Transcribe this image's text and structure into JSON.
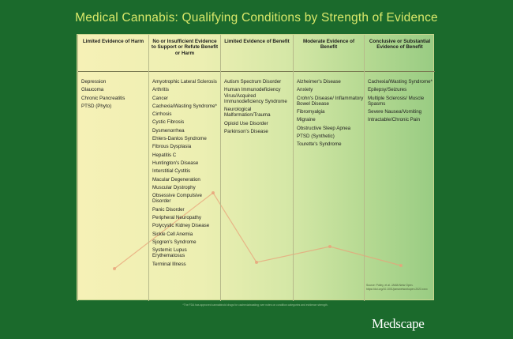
{
  "title": "Medical Cannabis: Qualifying Conditions by Strength of Evidence",
  "columns": [
    {
      "header": "Limited Evidence of Harm",
      "items": [
        "Depression",
        "Glaucoma",
        "Chronic Pancreatitis",
        "PTSD (Phyto)"
      ]
    },
    {
      "header": "No or Insufficient Evidence to Support or Refute Benefit or Harm",
      "items": [
        "Amyotrophic Lateral Sclerosis",
        "Arthritis",
        "Cancer",
        "Cachexia/Wasting Syndrome*",
        "Cirrhosis",
        "Cystic Fibrosis",
        "Dysmenorrhea",
        "Ehlers-Danlos Syndrome",
        "Fibrous Dysplasia",
        "Hepatitis C",
        "Huntington's Disease",
        "Interstitial Cystitis",
        "Macular Degeneration",
        "Muscular Dystrophy",
        "Obsessive Compulsive Disorder",
        "Panic Disorder",
        "Peripheral Neuropathy",
        "Polycystic Kidney Disease",
        "Sickle Cell Anemia",
        "Sjogren's Syndrome",
        "Systemic Lupus Erythematosus",
        "Terminal Illness"
      ]
    },
    {
      "header": "Limited Evidence of Benefit",
      "items": [
        "Autism Spectrum Disorder",
        "Human Immunodeficiency Virus/Acquired Immunodeficiency Syndrome",
        "Neurological Malformation/Trauma",
        "Opioid Use Disorder",
        "Parkinson's Disease"
      ]
    },
    {
      "header": "Moderate Evidence of Benefit",
      "items": [
        "Alzheimer's Disease",
        "Anxiety",
        "Crohn's Disease/ Inflammatory Bowel Disease",
        "Fibromyalgia",
        "Migraine",
        "Obstructive Sleep Apnea",
        "PTSD (Synthetic)",
        "Tourette's Syndrome"
      ]
    },
    {
      "header": "Conclusive or Substantial Evidence of Benefit",
      "items": [
        "Cachexia/Wasting Syndrome*",
        "Epilepsy/Seizures",
        "Multiple Sclerosis/ Muscle Spasms",
        "Severe Nausea/Vomiting",
        "Intractable/Chronic Pain"
      ]
    }
  ],
  "source": "Source: Polley, et al. JAMA Netw Open. https://doi.org/10.1001/jamanetworkopen.2023.xxxx",
  "footnote": "*The FDA has approved cannabinoid drugs for cachexia/wasting; see notes on condition categories and evidence strength.",
  "logo": "Medscape",
  "colors": {
    "background": "#1b6a2c",
    "title": "#d9e86a",
    "trend_line": "#e8a37a"
  }
}
